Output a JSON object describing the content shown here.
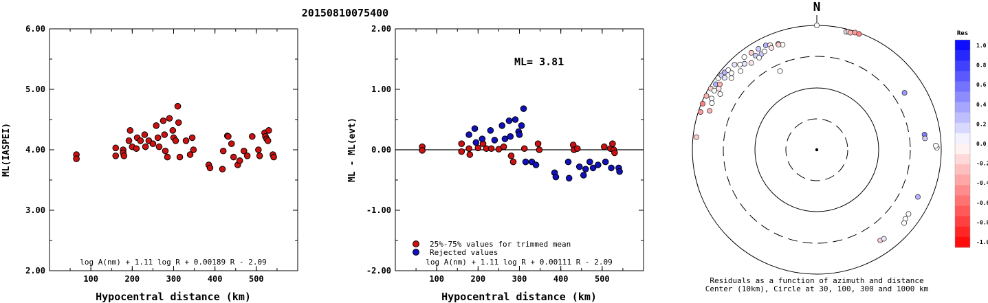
{
  "event_title": "20150810075400",
  "chart_data": [
    {
      "type": "scatter",
      "ylabel": "ML(IASPEI)",
      "xlabel": "Hypocentral distance (km)",
      "xlim": [
        0,
        600
      ],
      "ylim": [
        2.0,
        6.0
      ],
      "yticks": [
        "6.00",
        "5.00",
        "4.00",
        "3.00",
        "2.00"
      ],
      "xticks": [
        "100",
        "200",
        "300",
        "400",
        "500"
      ],
      "formula": "log A(nm) + 1.11 log R + 0.00189 R - 2.09",
      "marker_color": "#cc1111",
      "points": [
        [
          65,
          3.92
        ],
        [
          65,
          3.85
        ],
        [
          160,
          4.03
        ],
        [
          160,
          3.9
        ],
        [
          178,
          4.0
        ],
        [
          178,
          3.95
        ],
        [
          180,
          3.9
        ],
        [
          192,
          4.15
        ],
        [
          195,
          4.32
        ],
        [
          200,
          4.05
        ],
        [
          210,
          4.02
        ],
        [
          212,
          4.2
        ],
        [
          220,
          4.15
        ],
        [
          230,
          4.25
        ],
        [
          232,
          4.05
        ],
        [
          240,
          4.15
        ],
        [
          250,
          4.1
        ],
        [
          258,
          4.4
        ],
        [
          262,
          4.2
        ],
        [
          265,
          4.05
        ],
        [
          275,
          4.48
        ],
        [
          278,
          4.25
        ],
        [
          280,
          3.98
        ],
        [
          285,
          3.88
        ],
        [
          290,
          4.52
        ],
        [
          298,
          4.32
        ],
        [
          300,
          4.2
        ],
        [
          305,
          4.15
        ],
        [
          310,
          4.72
        ],
        [
          312,
          4.45
        ],
        [
          315,
          3.88
        ],
        [
          330,
          4.15
        ],
        [
          340,
          3.92
        ],
        [
          345,
          4.2
        ],
        [
          348,
          4.0
        ],
        [
          385,
          3.75
        ],
        [
          388,
          3.7
        ],
        [
          418,
          3.68
        ],
        [
          420,
          3.98
        ],
        [
          430,
          4.23
        ],
        [
          432,
          4.22
        ],
        [
          440,
          4.1
        ],
        [
          445,
          3.88
        ],
        [
          455,
          3.75
        ],
        [
          460,
          3.82
        ],
        [
          470,
          3.98
        ],
        [
          478,
          3.9
        ],
        [
          490,
          4.22
        ],
        [
          505,
          4.0
        ],
        [
          508,
          3.9
        ],
        [
          520,
          4.28
        ],
        [
          522,
          4.22
        ],
        [
          525,
          4.18
        ],
        [
          528,
          4.15
        ],
        [
          530,
          4.32
        ],
        [
          540,
          3.92
        ],
        [
          542,
          3.88
        ]
      ]
    },
    {
      "type": "scatter",
      "ylabel": "ML - ML(evt)",
      "xlabel": "Hypocentral distance (km)",
      "xlim": [
        0,
        600
      ],
      "ylim": [
        -2.0,
        2.0
      ],
      "yticks": [
        "2.00",
        "1.00",
        "0.00",
        "-1.00",
        "-2.00"
      ],
      "xticks": [
        "100",
        "200",
        "300",
        "400",
        "500"
      ],
      "annotation": "ML= 3.81",
      "formula": "log A(nm) + 1.11 log R + 0.00111 R - 2.09",
      "legend": [
        {
          "label": "25%-75% values for trimmed mean",
          "color": "#cc1111"
        },
        {
          "label": "Rejected values",
          "color": "#1111bb"
        }
      ],
      "series": [
        {
          "color": "#cc1111",
          "points": [
            [
              65,
              0.05
            ],
            [
              65,
              -0.01
            ],
            [
              160,
              0.1
            ],
            [
              160,
              -0.03
            ],
            [
              178,
              0.02
            ],
            [
              180,
              -0.08
            ],
            [
              200,
              0.03
            ],
            [
              212,
              0.1
            ],
            [
              220,
              0.02
            ],
            [
              232,
              0.02
            ],
            [
              250,
              0.01
            ],
            [
              262,
              0.05
            ],
            [
              280,
              -0.1
            ],
            [
              285,
              -0.2
            ],
            [
              312,
              0.02
            ],
            [
              345,
              0.1
            ],
            [
              348,
              0.0
            ],
            [
              430,
              0.08
            ],
            [
              432,
              0.0
            ],
            [
              440,
              0.02
            ],
            [
              505,
              0.05
            ],
            [
              520,
              0.02
            ],
            [
              525,
              0.1
            ],
            [
              528,
              0.0
            ],
            [
              530,
              -0.05
            ]
          ]
        },
        {
          "color": "#1111bb",
          "points": [
            [
              178,
              0.25
            ],
            [
              192,
              0.35
            ],
            [
              195,
              0.12
            ],
            [
              210,
              0.18
            ],
            [
              230,
              0.32
            ],
            [
              240,
              0.16
            ],
            [
              258,
              0.4
            ],
            [
              265,
              0.18
            ],
            [
              275,
              0.48
            ],
            [
              278,
              0.22
            ],
            [
              290,
              0.5
            ],
            [
              298,
              0.3
            ],
            [
              300,
              0.25
            ],
            [
              305,
              0.4
            ],
            [
              310,
              0.68
            ],
            [
              315,
              -0.2
            ],
            [
              330,
              -0.2
            ],
            [
              340,
              -0.25
            ],
            [
              385,
              -0.38
            ],
            [
              388,
              -0.45
            ],
            [
              418,
              -0.2
            ],
            [
              420,
              -0.47
            ],
            [
              445,
              -0.28
            ],
            [
              455,
              -0.42
            ],
            [
              460,
              -0.32
            ],
            [
              470,
              -0.2
            ],
            [
              478,
              -0.3
            ],
            [
              490,
              -0.25
            ],
            [
              508,
              -0.2
            ],
            [
              522,
              -0.3
            ],
            [
              540,
              -0.3
            ],
            [
              542,
              -0.36
            ]
          ]
        }
      ]
    },
    {
      "type": "scatter",
      "north_label": "N",
      "caption_line1": "Residuals as a function of azimuth and distance",
      "caption_line2": "Center (10km), Circle at 30, 100, 300 and 1000 km",
      "colorbar_title": "Res",
      "colorbar_ticks": [
        "1.0",
        "0.8",
        "0.6",
        "0.4",
        "0.2",
        "0.0",
        "-0.2",
        "-0.4",
        "-0.6",
        "-0.8",
        "-1.0"
      ],
      "stations": [
        [
          0,
          1000,
          0.0
        ],
        [
          14,
          900,
          0.1
        ],
        [
          15,
          930,
          -0.2
        ],
        [
          16,
          910,
          -0.3
        ],
        [
          18,
          960,
          -0.4
        ],
        [
          20,
          960,
          -0.5
        ],
        [
          57,
          480,
          0.4
        ],
        [
          82,
          560,
          0.5
        ],
        [
          84,
          560,
          0.2
        ],
        [
          89,
          850,
          0.0
        ],
        [
          88,
          820,
          0.0
        ],
        [
          115,
          620,
          0.3
        ],
        [
          128,
          640,
          0.0
        ],
        [
          125,
          630,
          0.0
        ],
        [
          130,
          680,
          0.0
        ],
        [
          145,
          600,
          -0.2
        ],
        [
          143,
          620,
          0.1
        ],
        [
          288,
          920,
          -0.4
        ],
        [
          292,
          950,
          -0.5
        ],
        [
          296,
          940,
          -0.3
        ],
        [
          300,
          930,
          -0.2
        ],
        [
          306,
          910,
          0.0
        ],
        [
          308,
          880,
          0.2
        ],
        [
          310,
          860,
          0.3
        ],
        [
          303,
          860,
          0.3
        ],
        [
          312,
          820,
          0.0
        ],
        [
          316,
          800,
          0.1
        ],
        [
          322,
          780,
          0.0
        ],
        [
          326,
          760,
          -0.2
        ],
        [
          330,
          750,
          0.2
        ],
        [
          334,
          740,
          0.3
        ],
        [
          336,
          700,
          -0.1
        ],
        [
          340,
          650,
          0.1
        ],
        [
          342,
          600,
          0.0
        ],
        [
          318,
          700,
          0.0
        ],
        [
          320,
          640,
          0.1
        ],
        [
          327,
          640,
          0.2
        ],
        [
          330,
          600,
          0.2
        ],
        [
          328,
          560,
          0.0
        ],
        [
          323,
          560,
          -0.1
        ],
        [
          316,
          580,
          0.0
        ],
        [
          310,
          620,
          0.0
        ],
        [
          312,
          700,
          0.0
        ],
        [
          308,
          760,
          0.1
        ],
        [
          304,
          760,
          -0.3
        ],
        [
          302,
          720,
          -0.1
        ],
        [
          300,
          800,
          0.0
        ],
        [
          296,
          760,
          0.0
        ],
        [
          294,
          700,
          0.0
        ],
        [
          290,
          680,
          -0.3
        ],
        [
          300,
          620,
          0.0
        ],
        [
          276,
          880,
          -0.2
        ],
        [
          335,
          250,
          0.0
        ],
        [
          332,
          620,
          0.0
        ],
        [
          336,
          620,
          -0.1
        ],
        [
          340,
          630,
          -0.2
        ]
      ]
    }
  ]
}
